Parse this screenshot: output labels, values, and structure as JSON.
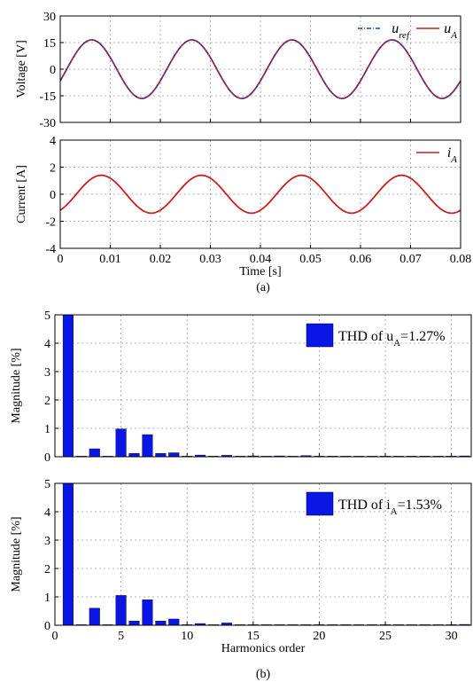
{
  "caption_a": "(a)",
  "caption_b": "(b)",
  "colors": {
    "ref": "#1f3fb0",
    "meas": "#cc1f1f",
    "bar": "#0a16e6",
    "grid": "#9a9a9a"
  },
  "chart_data": [
    {
      "type": "line",
      "ylabel": "Voltage [V]",
      "xlim": [
        0,
        0.08
      ],
      "ylim": [
        -30,
        30
      ],
      "yticks": [
        "30",
        "15",
        "0",
        "-15",
        "-30"
      ],
      "ytick_values": [
        30,
        15,
        0,
        -15,
        -30
      ],
      "grid": true,
      "legend_position": "top-right",
      "series": [
        {
          "name": "u",
          "subscript": "ref",
          "style": "dash-dot",
          "color": "#1f3fb0",
          "amplitude": 16.5,
          "frequency_hz": 50,
          "phase_offset_s": -0.0013
        },
        {
          "name": "u",
          "subscript": "A",
          "style": "solid",
          "color": "#cc1f1f",
          "amplitude": 16.5,
          "frequency_hz": 50,
          "phase_offset_s": -0.0013
        }
      ]
    },
    {
      "type": "line",
      "ylabel": "Current [A]",
      "xlabel": "Time [s]",
      "xlim": [
        0,
        0.08
      ],
      "ylim": [
        -4,
        4
      ],
      "xticks": [
        "0",
        "0.01",
        "0.02",
        "0.03",
        "0.04",
        "0.05",
        "0.06",
        "0.07",
        "0.08"
      ],
      "xtick_values": [
        0,
        0.01,
        0.02,
        0.03,
        0.04,
        0.05,
        0.06,
        0.07,
        0.08
      ],
      "yticks": [
        "4",
        "2",
        "0",
        "-2",
        "-4"
      ],
      "ytick_values": [
        4,
        2,
        0,
        -2,
        -4
      ],
      "grid": true,
      "legend_position": "top-right",
      "series": [
        {
          "name": "i",
          "subscript": "A",
          "style": "solid",
          "color": "#cc1f1f",
          "amplitude": 1.4,
          "frequency_hz": 50,
          "phase_offset_s": -0.0032
        }
      ]
    },
    {
      "type": "bar",
      "ylabel": "Magnitude [%]",
      "xlim": [
        0,
        31.5
      ],
      "ylim": [
        0,
        5
      ],
      "yticks": [
        "5",
        "4",
        "3",
        "2",
        "1",
        "0"
      ],
      "ytick_values": [
        5,
        4,
        3,
        2,
        1,
        0
      ],
      "grid": true,
      "legend_position": "top-right",
      "legend_prefix": "THD of u",
      "legend_sub": "A",
      "legend_suffix": "=1.27%",
      "x": [
        1,
        2,
        3,
        4,
        5,
        6,
        7,
        8,
        9,
        10,
        11,
        12,
        13,
        14,
        15,
        16,
        17,
        18,
        19,
        20,
        21,
        22,
        23,
        24,
        25,
        26,
        27,
        28,
        29,
        30,
        31
      ],
      "values": [
        5,
        0.02,
        0.28,
        0.02,
        0.98,
        0.12,
        0.78,
        0.12,
        0.14,
        0.02,
        0.06,
        0.02,
        0.05,
        0.02,
        0.03,
        0.02,
        0.03,
        0.02,
        0.04,
        0.02,
        0.02,
        0.02,
        0.02,
        0.02,
        0.02,
        0.02,
        0.02,
        0.02,
        0.02,
        0.02,
        0.03
      ]
    },
    {
      "type": "bar",
      "ylabel": "Magnitude [%]",
      "xlabel": "Harmonics order",
      "xlim": [
        0,
        31.5
      ],
      "ylim": [
        0,
        5
      ],
      "xticks": [
        "0",
        "5",
        "10",
        "15",
        "20",
        "25",
        "30"
      ],
      "xtick_values": [
        0,
        5,
        10,
        15,
        20,
        25,
        30
      ],
      "yticks": [
        "5",
        "4",
        "3",
        "2",
        "1",
        "0"
      ],
      "ytick_values": [
        5,
        4,
        3,
        2,
        1,
        0
      ],
      "grid": true,
      "legend_position": "top-right",
      "legend_prefix": "THD of i",
      "legend_sub": "A",
      "legend_suffix": "=1.53%",
      "x": [
        1,
        2,
        3,
        4,
        5,
        6,
        7,
        8,
        9,
        10,
        11,
        12,
        13,
        14,
        15,
        16,
        17,
        18,
        19,
        20,
        21,
        22,
        23,
        24,
        25,
        26,
        27,
        28,
        29,
        30,
        31
      ],
      "values": [
        5,
        0.02,
        0.6,
        0.02,
        1.05,
        0.15,
        0.9,
        0.15,
        0.22,
        0.02,
        0.06,
        0.02,
        0.08,
        0.02,
        0.02,
        0.02,
        0.02,
        0.02,
        0.02,
        0.02,
        0.02,
        0.02,
        0.02,
        0.02,
        0.02,
        0.02,
        0.02,
        0.02,
        0.02,
        0.02,
        0.03
      ]
    }
  ]
}
